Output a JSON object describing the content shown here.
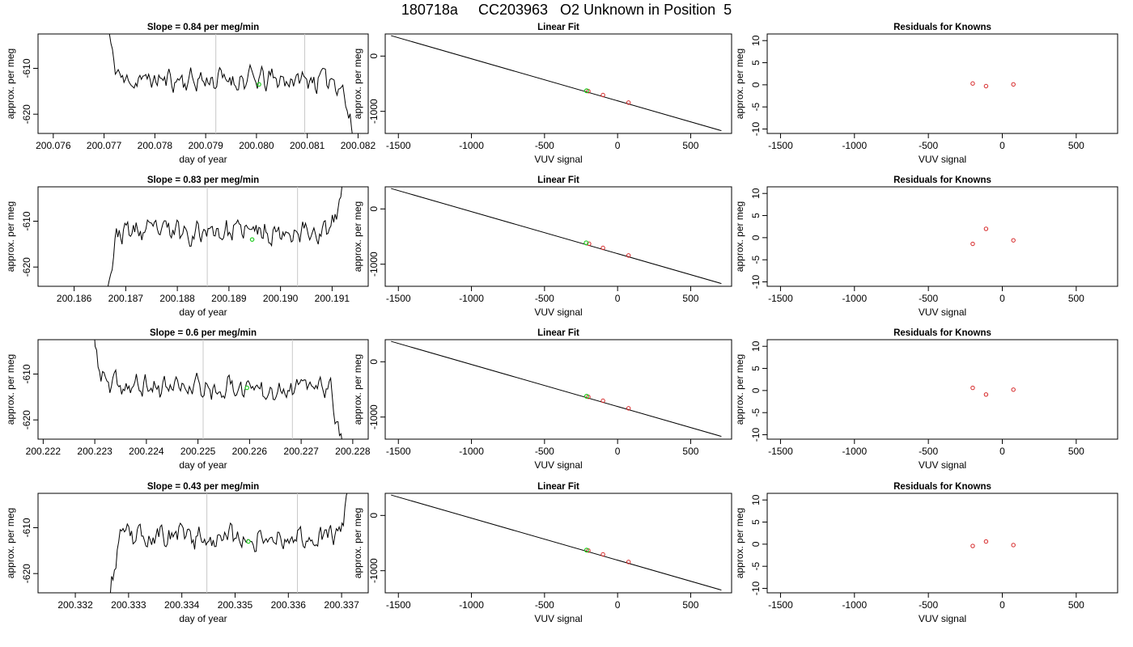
{
  "title": "180718a     CC203963   O2 Unknown in Position  5",
  "colors": {
    "line": "#000000",
    "known_point": "#d62728",
    "unknown_point": "#22cc22",
    "cycle_marker": "#c8c8c8"
  },
  "chart_data": [
    {
      "type": "line",
      "row": 0,
      "title": "Slope =  0.84  per meg/min",
      "xlabel": "day of year",
      "ylabel": "approx. per meg",
      "xlim": [
        200.0757,
        200.0822
      ],
      "ylim": [
        -624.2,
        -602.5
      ],
      "xticks": [
        "200.076",
        "200.077",
        "200.078",
        "200.079",
        "200.080",
        "200.081",
        "200.082"
      ],
      "yticks": [
        "-610",
        "-620"
      ],
      "start_x": 200.07705,
      "end_x": 200.0819,
      "vlines": [
        200.0792,
        200.08095
      ],
      "highlight": {
        "x": 200.08005,
        "y": -613.5
      },
      "start_y": -600,
      "end_y": -626,
      "base": -612.5,
      "amplitude": 1.9,
      "wiggle": 1.4,
      "seed": 11
    },
    {
      "type": "line",
      "row": 1,
      "title": "Slope =  0.83  per meg/min",
      "xlabel": "day of year",
      "ylabel": "approx. per meg",
      "xlim": [
        200.1853,
        200.1917
      ],
      "ylim": [
        -624.2,
        -602.5
      ],
      "xticks": [
        "200.186",
        "200.187",
        "200.188",
        "200.189",
        "200.190",
        "200.191"
      ],
      "yticks": [
        "-610",
        "-620"
      ],
      "start_x": 200.1866,
      "end_x": 200.19125,
      "vlines": [
        200.18858,
        200.19033
      ],
      "highlight": {
        "x": 200.18945,
        "y": -614.0
      },
      "start_y": -630,
      "end_y": -598,
      "base": -612.2,
      "amplitude": 1.9,
      "wiggle": 1.4,
      "seed": 23
    },
    {
      "type": "line",
      "row": 2,
      "title": "Slope =  0.6  per meg/min",
      "xlabel": "day of year",
      "ylabel": "approx. per meg",
      "xlim": [
        200.2219,
        200.2283
      ],
      "ylim": [
        -624.2,
        -602.5
      ],
      "xticks": [
        "200.222",
        "200.223",
        "200.224",
        "200.225",
        "200.226",
        "200.227",
        "200.228"
      ],
      "yticks": [
        "-610",
        "-620"
      ],
      "start_x": 200.22295,
      "end_x": 200.2278,
      "vlines": [
        200.2251,
        200.22683
      ],
      "highlight": {
        "x": 200.22595,
        "y": -613.0
      },
      "start_y": -600,
      "end_y": -628,
      "base": -612.8,
      "amplitude": 1.9,
      "wiggle": 1.5,
      "seed": 37
    },
    {
      "type": "line",
      "row": 3,
      "title": "Slope =  0.43  per meg/min",
      "xlabel": "day of year",
      "ylabel": "approx. per meg",
      "xlim": [
        200.3313,
        200.3375
      ],
      "ylim": [
        -624.2,
        -602.5
      ],
      "xticks": [
        "200.332",
        "200.333",
        "200.334",
        "200.335",
        "200.336",
        "200.337"
      ],
      "yticks": [
        "-610",
        "-620"
      ],
      "start_x": 200.3326,
      "end_x": 200.33717,
      "vlines": [
        200.33447,
        200.33617
      ],
      "highlight": {
        "x": 200.33525,
        "y": -613.0
      },
      "start_y": -630,
      "end_y": -598,
      "base": -612.0,
      "amplitude": 1.9,
      "wiggle": 1.4,
      "seed": 53
    },
    {
      "type": "scatter",
      "row": 0,
      "title": "Linear Fit",
      "xlabel": "VUV signal",
      "ylabel": "approx. per meg",
      "xlim": [
        -1590,
        780
      ],
      "ylim": [
        -1400,
        400
      ],
      "xticks": [
        "-1500",
        "-1000",
        "-500",
        "0",
        "500"
      ],
      "yticks": [
        "0",
        "-1000"
      ],
      "line": {
        "x": [
          -1550,
          710
        ],
        "y": [
          370,
          -1350
        ]
      },
      "known_points": [
        {
          "x": -200,
          "y": -635
        },
        {
          "x": -100,
          "y": -705
        },
        {
          "x": 75,
          "y": -842
        }
      ],
      "unknown_points": [
        {
          "x": -212,
          "y": -628
        }
      ]
    },
    {
      "type": "scatter",
      "row": 1,
      "title": "Linear Fit",
      "xlabel": "VUV signal",
      "ylabel": "approx. per meg",
      "xlim": [
        -1590,
        780
      ],
      "ylim": [
        -1400,
        400
      ],
      "xticks": [
        "-1500",
        "-1000",
        "-500",
        "0",
        "500"
      ],
      "yticks": [
        "0",
        "-1000"
      ],
      "line": {
        "x": [
          -1550,
          710
        ],
        "y": [
          370,
          -1350
        ]
      },
      "known_points": [
        {
          "x": -195,
          "y": -630
        },
        {
          "x": -100,
          "y": -705
        },
        {
          "x": 75,
          "y": -842
        }
      ],
      "unknown_points": [
        {
          "x": -215,
          "y": -615
        }
      ]
    },
    {
      "type": "scatter",
      "row": 2,
      "title": "Linear Fit",
      "xlabel": "VUV signal",
      "ylabel": "approx. per meg",
      "xlim": [
        -1590,
        780
      ],
      "ylim": [
        -1400,
        400
      ],
      "xticks": [
        "-1500",
        "-1000",
        "-500",
        "0",
        "500"
      ],
      "yticks": [
        "0",
        "-1000"
      ],
      "line": {
        "x": [
          -1550,
          710
        ],
        "y": [
          370,
          -1350
        ]
      },
      "known_points": [
        {
          "x": -200,
          "y": -635
        },
        {
          "x": -100,
          "y": -705
        },
        {
          "x": 75,
          "y": -842
        }
      ],
      "unknown_points": [
        {
          "x": -212,
          "y": -625
        }
      ]
    },
    {
      "type": "scatter",
      "row": 3,
      "title": "Linear Fit",
      "xlabel": "VUV signal",
      "ylabel": "approx. per meg",
      "xlim": [
        -1590,
        780
      ],
      "ylim": [
        -1400,
        400
      ],
      "xticks": [
        "-1500",
        "-1000",
        "-500",
        "0",
        "500"
      ],
      "yticks": [
        "0",
        "-1000"
      ],
      "line": {
        "x": [
          -1550,
          710
        ],
        "y": [
          370,
          -1350
        ]
      },
      "known_points": [
        {
          "x": -200,
          "y": -635
        },
        {
          "x": -100,
          "y": -705
        },
        {
          "x": 75,
          "y": -842
        }
      ],
      "unknown_points": [
        {
          "x": -212,
          "y": -628
        }
      ]
    },
    {
      "type": "scatter",
      "row": 0,
      "title": "Residuals for Knowns",
      "xlabel": "VUV signal",
      "ylabel": "approx. per meg",
      "xlim": [
        -1590,
        780
      ],
      "ylim": [
        -11,
        11.5
      ],
      "xticks": [
        "-1500",
        "-1000",
        "-500",
        "0",
        "500"
      ],
      "yticks": [
        "10",
        "5",
        "0",
        "-5",
        "-10"
      ],
      "known_points": [
        {
          "x": -200,
          "y": 0.3
        },
        {
          "x": -110,
          "y": -0.3
        },
        {
          "x": 75,
          "y": 0.1
        }
      ]
    },
    {
      "type": "scatter",
      "row": 1,
      "title": "Residuals for Knowns",
      "xlabel": "VUV signal",
      "ylabel": "approx. per meg",
      "xlim": [
        -1590,
        780
      ],
      "ylim": [
        -11,
        11.5
      ],
      "xticks": [
        "-1500",
        "-1000",
        "-500",
        "0",
        "500"
      ],
      "yticks": [
        "10",
        "5",
        "0",
        "-5",
        "-10"
      ],
      "known_points": [
        {
          "x": -200,
          "y": -1.4
        },
        {
          "x": -110,
          "y": 2.0
        },
        {
          "x": 75,
          "y": -0.6
        }
      ]
    },
    {
      "type": "scatter",
      "row": 2,
      "title": "Residuals for Knowns",
      "xlabel": "VUV signal",
      "ylabel": "approx. per meg",
      "xlim": [
        -1590,
        780
      ],
      "ylim": [
        -11,
        11.5
      ],
      "xticks": [
        "-1500",
        "-1000",
        "-500",
        "0",
        "500"
      ],
      "yticks": [
        "10",
        "5",
        "0",
        "-5",
        "-10"
      ],
      "known_points": [
        {
          "x": -200,
          "y": 0.6
        },
        {
          "x": -110,
          "y": -0.9
        },
        {
          "x": 75,
          "y": 0.2
        }
      ]
    },
    {
      "type": "scatter",
      "row": 3,
      "title": "Residuals for Knowns",
      "xlabel": "VUV signal",
      "ylabel": "approx. per meg",
      "xlim": [
        -1590,
        780
      ],
      "ylim": [
        -11,
        11.5
      ],
      "xticks": [
        "-1500",
        "-1000",
        "-500",
        "0",
        "500"
      ],
      "yticks": [
        "10",
        "5",
        "0",
        "-5",
        "-10"
      ],
      "known_points": [
        {
          "x": -200,
          "y": -0.4
        },
        {
          "x": -110,
          "y": 0.6
        },
        {
          "x": 75,
          "y": -0.2
        }
      ]
    }
  ]
}
